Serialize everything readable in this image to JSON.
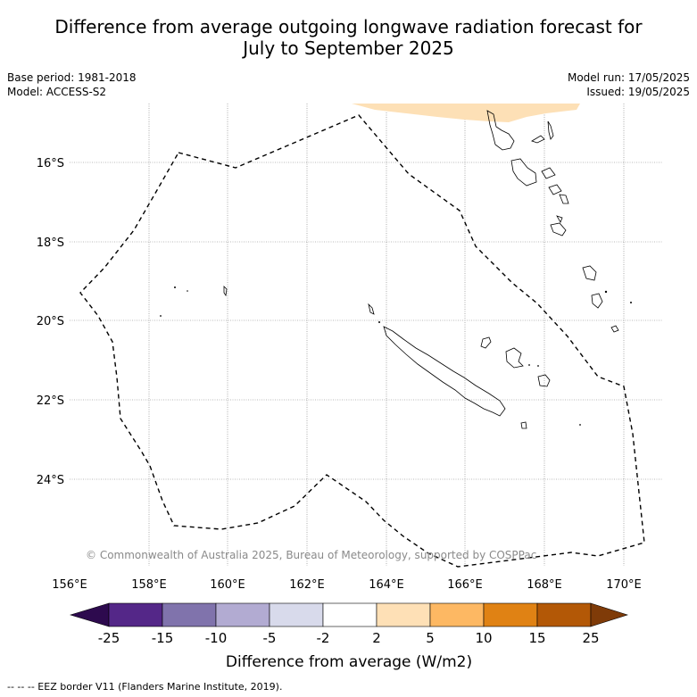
{
  "title_line1": "Difference from average outgoing longwave radiation forecast for",
  "title_line2": "July to September 2025",
  "meta_left": {
    "base_period": "Base period: 1981-2018",
    "model": "Model: ACCESS-S2"
  },
  "meta_right": {
    "model_run": "Model run: 17/05/2025",
    "issued": "Issued: 19/05/2025"
  },
  "map": {
    "lon_ticks": [
      "156°E",
      "158°E",
      "160°E",
      "162°E",
      "164°E",
      "166°E",
      "168°E",
      "170°E"
    ],
    "lat_ticks": [
      "16°S",
      "18°S",
      "20°S",
      "22°S",
      "24°S"
    ],
    "copyright": "© Commonwealth of Australia 2025, Bureau of Meteorology, supported by COSPPac",
    "anomaly_fill_color": "#fde0b6",
    "eez_line_style": "dashed"
  },
  "colorbar": {
    "tick_labels": [
      "-25",
      "-15",
      "-10",
      "-5",
      "-2",
      "2",
      "5",
      "10",
      "15",
      "25"
    ],
    "colors": [
      "#2d0a4e",
      "#542788",
      "#8073ac",
      "#b2abd2",
      "#d8daeb",
      "#ffffff",
      "#fee0b6",
      "#fdb863",
      "#e08214",
      "#b35806",
      "#7f3b08"
    ],
    "label": "Difference from average (W/m2)"
  },
  "footer": "--  --  -- EEZ border V11 (Flanders Marine Institute, 2019)."
}
